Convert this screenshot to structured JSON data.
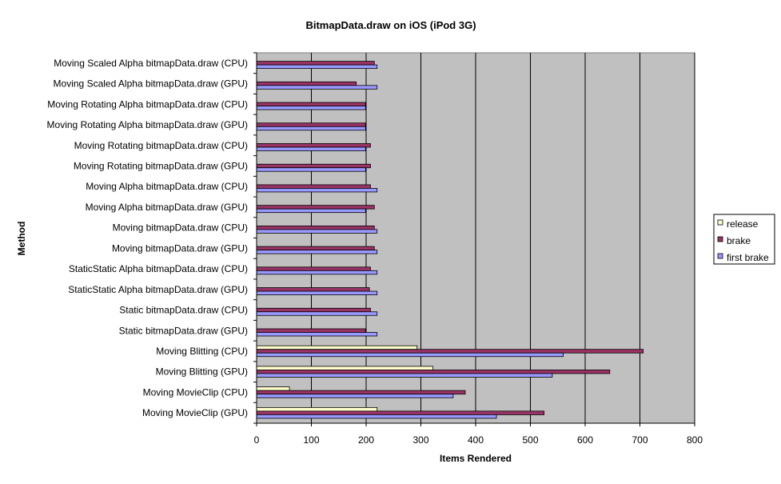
{
  "chart_data": {
    "type": "bar",
    "orientation": "horizontal",
    "title": "BitmapData.draw on iOS (iPod 3G)",
    "xlabel": "Items Rendered",
    "ylabel": "Method",
    "xlim": [
      0,
      800
    ],
    "xticks": [
      0,
      100,
      200,
      300,
      400,
      500,
      600,
      700,
      800
    ],
    "grid": "vertical",
    "legend_position": "right",
    "categories": [
      "Moving Scaled Alpha bitmapData.draw (CPU)",
      "Moving Scaled Alpha bitmapData.draw (GPU)",
      "Moving Rotating Alpha bitmapData.draw (CPU)",
      "Moving Rotating Alpha bitmapData.draw (GPU)",
      "Moving Rotating bitmapData.draw (CPU)",
      "Moving Rotating bitmapData.draw (GPU)",
      "Moving Alpha bitmapData.draw (CPU)",
      "Moving Alpha bitmapData.draw (GPU)",
      "Moving bitmapData.draw (CPU)",
      "Moving bitmapData.draw (GPU)",
      "StaticStatic Alpha bitmapData.draw (CPU)",
      "StaticStatic Alpha bitmapData.draw (GPU)",
      "Static bitmapData.draw (CPU)",
      "Static bitmapData.draw (GPU)",
      "Moving Blitting (CPU)",
      "Moving Blitting (GPU)",
      "Moving MovieClip (CPU)",
      "Moving MovieClip (GPU)"
    ],
    "series": [
      {
        "name": "release",
        "color": "#FFFFCC",
        "values": [
          0,
          0,
          0,
          0,
          0,
          0,
          0,
          0,
          0,
          0,
          0,
          0,
          0,
          0,
          293,
          322,
          60,
          220
        ]
      },
      {
        "name": "brake",
        "color": "#993366",
        "values": [
          215,
          182,
          199,
          199,
          208,
          208,
          208,
          215,
          215,
          215,
          208,
          206,
          208,
          199,
          706,
          645,
          381,
          525
        ]
      },
      {
        "name": "first brake",
        "color": "#9999FF",
        "values": [
          220,
          220,
          199,
          199,
          199,
          199,
          220,
          199,
          220,
          220,
          220,
          220,
          220,
          220,
          560,
          540,
          359,
          438
        ]
      }
    ]
  }
}
